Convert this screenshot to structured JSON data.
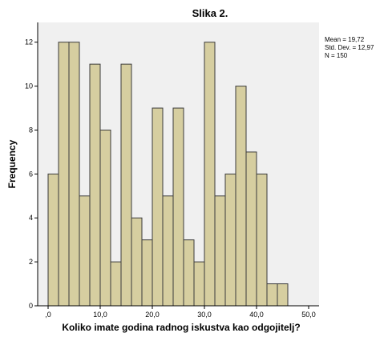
{
  "chart_data": {
    "type": "bar",
    "title": "Slika 2.",
    "xlabel": "Koliko imate godina radnog iskustva kao odgojitelj?",
    "ylabel": "Frequency",
    "x_ticks": [
      ",0",
      "10,0",
      "20,0",
      "30,0",
      "40,0",
      "50,0"
    ],
    "x_tick_values": [
      0,
      10,
      20,
      30,
      40,
      50
    ],
    "y_ticks": [
      0,
      2,
      4,
      6,
      8,
      10,
      12
    ],
    "xlim": [
      -2,
      52
    ],
    "ylim": [
      0,
      12.9
    ],
    "bin_width": 2,
    "bin_starts": [
      0,
      2,
      4,
      6,
      8,
      10,
      12,
      14,
      16,
      18,
      20,
      22,
      24,
      26,
      28,
      30,
      32,
      34,
      36,
      38,
      40,
      42,
      44
    ],
    "values": [
      6,
      12,
      12,
      5,
      11,
      8,
      2,
      11,
      4,
      3,
      9,
      5,
      9,
      3,
      2,
      12,
      5,
      6,
      10,
      7,
      6,
      1,
      1
    ],
    "plot_background": "#f0f0f0",
    "bar_color": "#d6cea0",
    "grid": false,
    "legend": "none",
    "stats": {
      "mean": "Mean = 19,72",
      "std": "Std. Dev. = 12,97",
      "n": "N = 150"
    }
  }
}
